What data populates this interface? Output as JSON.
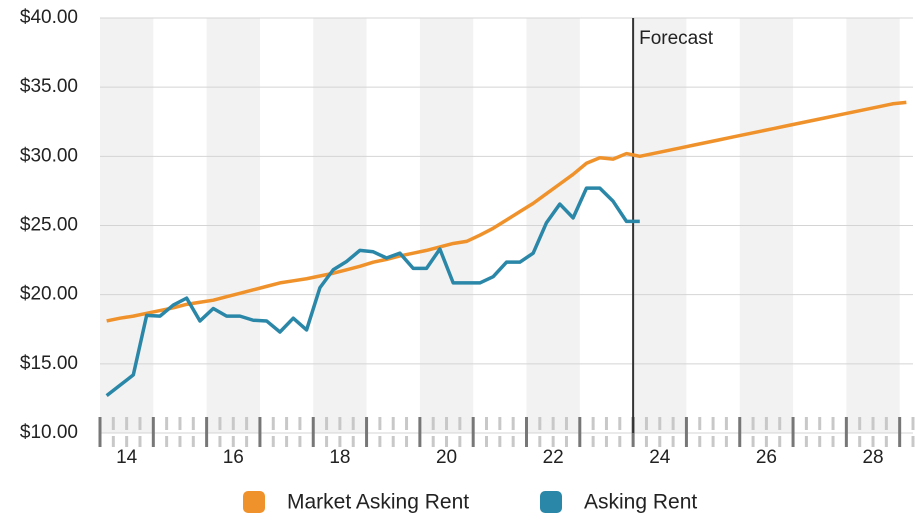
{
  "chart_data": {
    "type": "line",
    "annotation": {
      "text": "Forecast",
      "x": 2024
    },
    "xlim": [
      2014,
      2029.25
    ],
    "xticks": [
      {
        "value": 2014.5,
        "label": "14"
      },
      {
        "value": 2016.5,
        "label": "16"
      },
      {
        "value": 2018.5,
        "label": "18"
      },
      {
        "value": 2020.5,
        "label": "20"
      },
      {
        "value": 2022.5,
        "label": "22"
      },
      {
        "value": 2024.5,
        "label": "24"
      },
      {
        "value": 2026.5,
        "label": "26"
      },
      {
        "value": 2028.5,
        "label": "28"
      }
    ],
    "ylim": [
      10,
      40
    ],
    "yticks": [
      {
        "value": 10,
        "label": "$10.00"
      },
      {
        "value": 15,
        "label": "$15.00"
      },
      {
        "value": 20,
        "label": "$20.00"
      },
      {
        "value": 25,
        "label": "$25.00"
      },
      {
        "value": 30,
        "label": "$30.00"
      },
      {
        "value": 35,
        "label": "$35.00"
      },
      {
        "value": 40,
        "label": "$40.00"
      }
    ],
    "grid": true,
    "legend": "bottom",
    "series": [
      {
        "name": "Market Asking Rent",
        "color": "#f0922b",
        "x": [
          2014.125,
          2014.375,
          2014.625,
          2014.875,
          2015.125,
          2015.375,
          2015.625,
          2015.875,
          2016.125,
          2016.375,
          2016.625,
          2016.875,
          2017.125,
          2017.375,
          2017.625,
          2017.875,
          2018.125,
          2018.375,
          2018.625,
          2018.875,
          2019.125,
          2019.375,
          2019.625,
          2019.875,
          2020.125,
          2020.375,
          2020.625,
          2020.875,
          2021.125,
          2021.375,
          2021.625,
          2021.875,
          2022.125,
          2022.375,
          2022.625,
          2022.875,
          2023.125,
          2023.375,
          2023.625,
          2023.875,
          2024.125,
          2024.375,
          2024.625,
          2024.875,
          2025.125,
          2025.375,
          2025.625,
          2025.875,
          2026.125,
          2026.375,
          2026.625,
          2026.875,
          2027.125,
          2027.375,
          2027.625,
          2027.875,
          2028.125,
          2028.375,
          2028.625,
          2028.875,
          2029.125
        ],
        "values": [
          18.1,
          18.3,
          18.45,
          18.65,
          18.85,
          19.05,
          19.3,
          19.45,
          19.6,
          19.85,
          20.1,
          20.35,
          20.6,
          20.85,
          21.0,
          21.15,
          21.35,
          21.55,
          21.8,
          22.05,
          22.35,
          22.55,
          22.8,
          23.0,
          23.2,
          23.45,
          23.7,
          23.85,
          24.3,
          24.8,
          25.4,
          26.0,
          26.6,
          27.3,
          28.0,
          28.7,
          29.5,
          29.9,
          29.8,
          30.2,
          30.0,
          30.2,
          30.4,
          30.6,
          30.8,
          31.0,
          31.2,
          31.4,
          31.6,
          31.8,
          32.0,
          32.2,
          32.4,
          32.6,
          32.8,
          33.0,
          33.2,
          33.4,
          33.6,
          33.8,
          33.9
        ]
      },
      {
        "name": "Asking Rent",
        "color": "#2a87a8",
        "x": [
          2014.125,
          2014.375,
          2014.625,
          2014.875,
          2015.125,
          2015.375,
          2015.625,
          2015.875,
          2016.125,
          2016.375,
          2016.625,
          2016.875,
          2017.125,
          2017.375,
          2017.625,
          2017.875,
          2018.125,
          2018.375,
          2018.625,
          2018.875,
          2019.125,
          2019.375,
          2019.625,
          2019.875,
          2020.125,
          2020.375,
          2020.625,
          2020.875,
          2021.125,
          2021.375,
          2021.625,
          2021.875,
          2022.125,
          2022.375,
          2022.625,
          2022.875,
          2023.125,
          2023.375,
          2023.625,
          2023.875,
          2024.125
        ],
        "values": [
          12.7,
          13.45,
          14.2,
          18.5,
          18.45,
          19.25,
          19.75,
          18.1,
          19.0,
          18.45,
          18.45,
          18.15,
          18.1,
          17.3,
          18.3,
          17.45,
          20.5,
          21.8,
          22.4,
          23.2,
          23.1,
          22.65,
          23.0,
          21.9,
          21.9,
          23.3,
          20.85,
          20.85,
          20.85,
          21.3,
          22.35,
          22.35,
          23.0,
          25.2,
          26.55,
          25.55,
          27.7,
          27.7,
          26.75,
          25.3,
          25.3
        ]
      }
    ]
  }
}
